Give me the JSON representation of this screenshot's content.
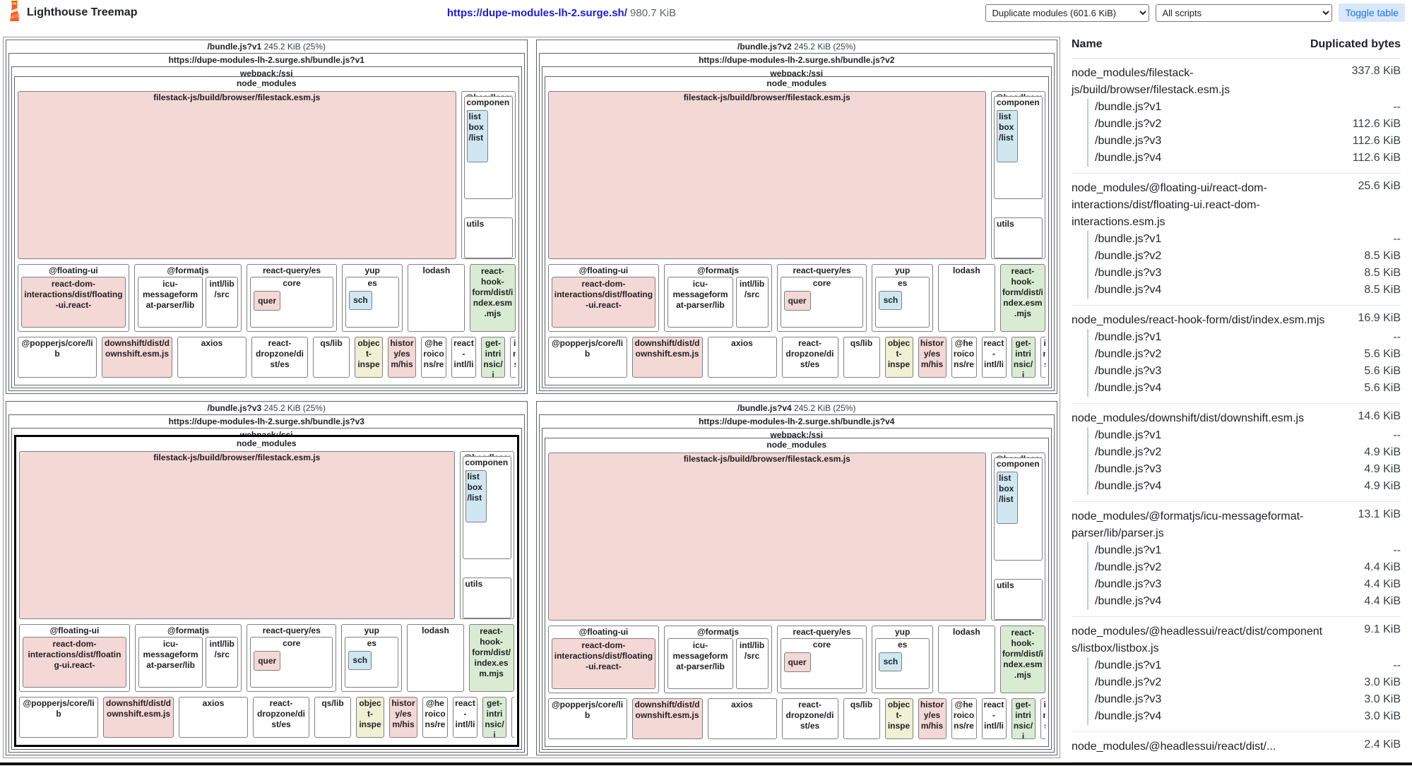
{
  "header": {
    "app_title": "Lighthouse Treemap",
    "url": "https://dupe-modules-lh-2.surge.sh/",
    "total_size": "980.7 KiB",
    "view_mode_selected": "Duplicate modules (601.6 KiB)",
    "script_selected": "All scripts",
    "toggle_table_label": "Toggle table"
  },
  "treemap": {
    "bundles": [
      {
        "title": "/bundle.js?v1",
        "size": "245.2 KiB (25%)",
        "url": "https://dupe-modules-lh-2.surge.sh/bundle.js?v1",
        "highlighted": false
      },
      {
        "title": "/bundle.js?v2",
        "size": "245.2 KiB (25%)",
        "url": "https://dupe-modules-lh-2.surge.sh/bundle.js?v2",
        "highlighted": false
      },
      {
        "title": "/bundle.js?v3",
        "size": "245.2 KiB (25%)",
        "url": "https://dupe-modules-lh-2.surge.sh/bundle.js?v3",
        "highlighted": true
      },
      {
        "title": "/bundle.js?v4",
        "size": "245.2 KiB (25%)",
        "url": "https://dupe-modules-lh-2.surge.sh/bundle.js?v4",
        "highlighted": false
      }
    ],
    "cells": {
      "webpack": "webpack:/ssi",
      "node_modules": "node_modules",
      "filestack": "filestack-js/build/browser/filestack.esm.js",
      "headlessui": "@headlessui",
      "components": "components",
      "listbox": "listbox/list",
      "utils": "utils",
      "floating_ui": "@floating-ui",
      "floating_inner": "react-dom-interactions/dist/floating-ui.react-",
      "formatjs": "@formatjs",
      "icu": "icu-messageformat-parser/lib",
      "intl_lib_src": "intl/lib/src",
      "react_query": "react-query/es",
      "core": "core",
      "quer": "quer",
      "yup": "yup",
      "es": "es",
      "sch": "sch",
      "lodash": "lodash",
      "react_hook_form": "react-hook-form/dist/index.esm.mjs",
      "popperjs": "@popperjs/core/lib",
      "downshift": "downshift/dist/downshift.esm.js",
      "axios": "axios",
      "react_dropzone": "react-dropzone/dist/es",
      "qs": "qs/lib",
      "object_inspect": "object-inspe",
      "history": "history/esm/his",
      "heroicons": "@heroicons/re",
      "react_intl": "react-intl/li",
      "get_intrinsic": "get-intrinsic/i",
      "intl_messageformat": "intl-messag"
    }
  },
  "table": {
    "columns": {
      "name": "Name",
      "bytes": "Duplicated bytes"
    },
    "groups": [
      {
        "name": "node_modules/filestack-js/build/browser/filestack.esm.js",
        "total": "337.8 KiB",
        "rows": [
          {
            "label": "/bundle.js?v1",
            "value": "--"
          },
          {
            "label": "/bundle.js?v2",
            "value": "112.6 KiB"
          },
          {
            "label": "/bundle.js?v3",
            "value": "112.6 KiB"
          },
          {
            "label": "/bundle.js?v4",
            "value": "112.6 KiB"
          }
        ]
      },
      {
        "name": "node_modules/@floating-ui/react-dom-interactions/dist/floating-ui.react-dom-interactions.esm.js",
        "total": "25.6 KiB",
        "rows": [
          {
            "label": "/bundle.js?v1",
            "value": "--"
          },
          {
            "label": "/bundle.js?v2",
            "value": "8.5 KiB"
          },
          {
            "label": "/bundle.js?v3",
            "value": "8.5 KiB"
          },
          {
            "label": "/bundle.js?v4",
            "value": "8.5 KiB"
          }
        ]
      },
      {
        "name": "node_modules/react-hook-form/dist/index.esm.mjs",
        "total": "16.9 KiB",
        "rows": [
          {
            "label": "/bundle.js?v1",
            "value": "--"
          },
          {
            "label": "/bundle.js?v2",
            "value": "5.6 KiB"
          },
          {
            "label": "/bundle.js?v3",
            "value": "5.6 KiB"
          },
          {
            "label": "/bundle.js?v4",
            "value": "5.6 KiB"
          }
        ]
      },
      {
        "name": "node_modules/downshift/dist/downshift.esm.js",
        "total": "14.6 KiB",
        "rows": [
          {
            "label": "/bundle.js?v1",
            "value": "--"
          },
          {
            "label": "/bundle.js?v2",
            "value": "4.9 KiB"
          },
          {
            "label": "/bundle.js?v3",
            "value": "4.9 KiB"
          },
          {
            "label": "/bundle.js?v4",
            "value": "4.9 KiB"
          }
        ]
      },
      {
        "name": "node_modules/@formatjs/icu-messageformat-parser/lib/parser.js",
        "total": "13.1 KiB",
        "rows": [
          {
            "label": "/bundle.js?v1",
            "value": "--"
          },
          {
            "label": "/bundle.js?v2",
            "value": "4.4 KiB"
          },
          {
            "label": "/bundle.js?v3",
            "value": "4.4 KiB"
          },
          {
            "label": "/bundle.js?v4",
            "value": "4.4 KiB"
          }
        ]
      },
      {
        "name": "node_modules/@headlessui/react/dist/components/listbox/listbox.js",
        "total": "9.1 KiB",
        "rows": [
          {
            "label": "/bundle.js?v1",
            "value": "--"
          },
          {
            "label": "/bundle.js?v2",
            "value": "3.0 KiB"
          },
          {
            "label": "/bundle.js?v3",
            "value": "3.0 KiB"
          },
          {
            "label": "/bundle.js?v4",
            "value": "3.0 KiB"
          }
        ]
      },
      {
        "name": "node_modules/@headlessui/react/dist/...",
        "total": "2.4 KiB",
        "rows": []
      }
    ]
  },
  "colors": {
    "pink": "#f4d8d6",
    "blue": "#cfe7f1",
    "green": "#d9ecd3",
    "cream": "#eff0d4",
    "accent": "#1a73e8",
    "link": "#1a1ae0"
  }
}
